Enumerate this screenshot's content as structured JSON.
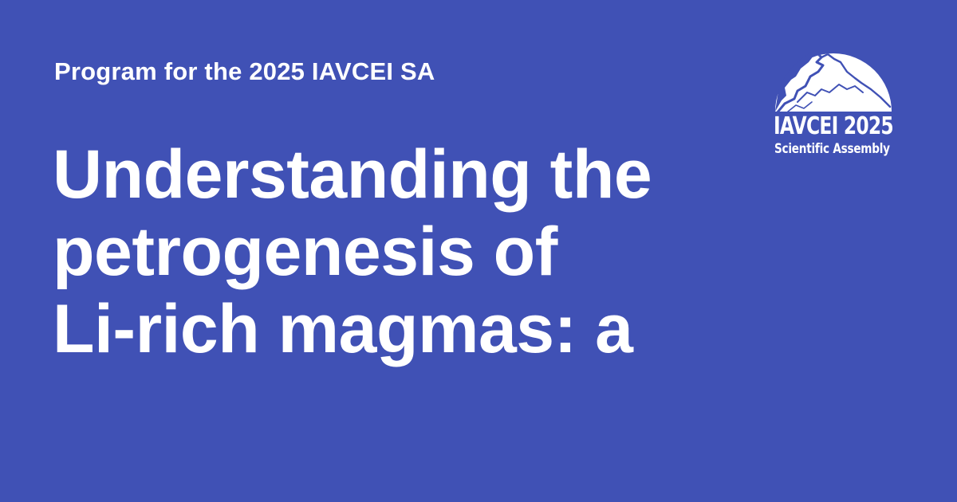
{
  "card": {
    "kicker": "Program for the 2025 IAVCEI SA",
    "headline_lines": [
      "Understanding the",
      "petrogenesis of",
      "Li-rich magmas: a"
    ]
  },
  "logo": {
    "title": "IAVCEI 2025",
    "subtitle": "Scientific Assembly",
    "icon": "volcano-icon"
  },
  "colors": {
    "background": "#4051b5",
    "text": "#ffffff"
  }
}
